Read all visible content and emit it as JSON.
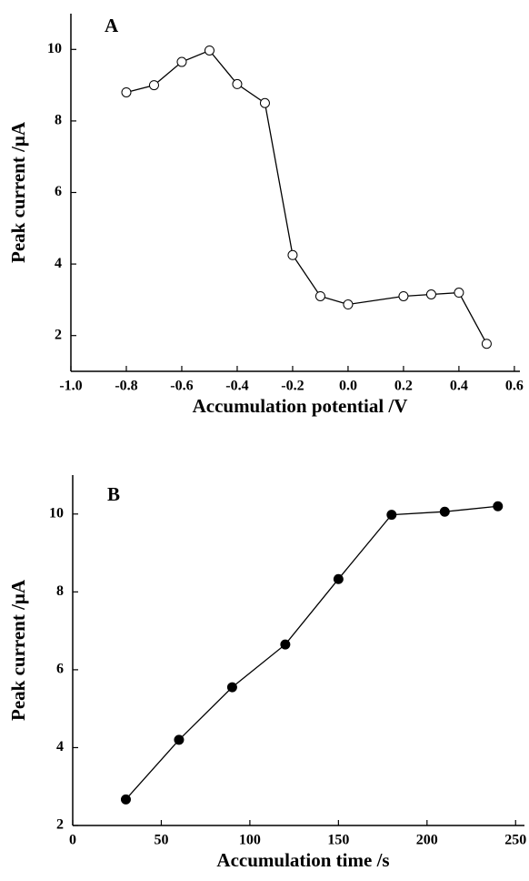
{
  "chart_data": [
    {
      "type": "line",
      "title": "A",
      "xlabel": "Accumulation potential /V",
      "ylabel": "Peak current /μA",
      "x": [
        -0.8,
        -0.7,
        -0.6,
        -0.5,
        -0.4,
        -0.3,
        -0.2,
        -0.1,
        0.0,
        0.2,
        0.3,
        0.4,
        0.5
      ],
      "series": [
        {
          "color": "#000000",
          "marker": "open",
          "values": [
            8.8,
            9.0,
            9.65,
            9.97,
            9.03,
            8.5,
            4.25,
            3.1,
            2.87,
            3.1,
            3.15,
            3.2,
            1.77
          ]
        }
      ],
      "xlim": [
        -1.0,
        0.62
      ],
      "ylim": [
        1,
        11
      ],
      "xticks": [
        {
          "value": -1.0,
          "label": "-1.0"
        },
        {
          "value": -0.8,
          "label": "-0.8"
        },
        {
          "value": -0.6,
          "label": "-0.6"
        },
        {
          "value": -0.4,
          "label": "-0.4"
        },
        {
          "value": -0.2,
          "label": "-0.2"
        },
        {
          "value": 0.0,
          "label": "0.0"
        },
        {
          "value": 0.2,
          "label": "0.2"
        },
        {
          "value": 0.4,
          "label": "0.4"
        },
        {
          "value": 0.6,
          "label": "0.6"
        }
      ],
      "yticks": [
        2,
        4,
        6,
        8,
        10
      ]
    },
    {
      "type": "line",
      "title": "B",
      "xlabel": "Accumulation time /s",
      "ylabel": "Peak current /μA",
      "x": [
        30,
        60,
        90,
        120,
        150,
        180,
        210,
        240
      ],
      "series": [
        {
          "color": "#000000",
          "marker": "filled",
          "values": [
            2.67,
            4.2,
            5.55,
            6.65,
            8.33,
            9.98,
            10.06,
            10.2
          ]
        }
      ],
      "xlim": [
        0,
        255
      ],
      "ylim": [
        2,
        11
      ],
      "xticks": [
        0,
        50,
        100,
        150,
        200,
        250
      ],
      "yticks": [
        2,
        4,
        6,
        8,
        10
      ]
    }
  ]
}
